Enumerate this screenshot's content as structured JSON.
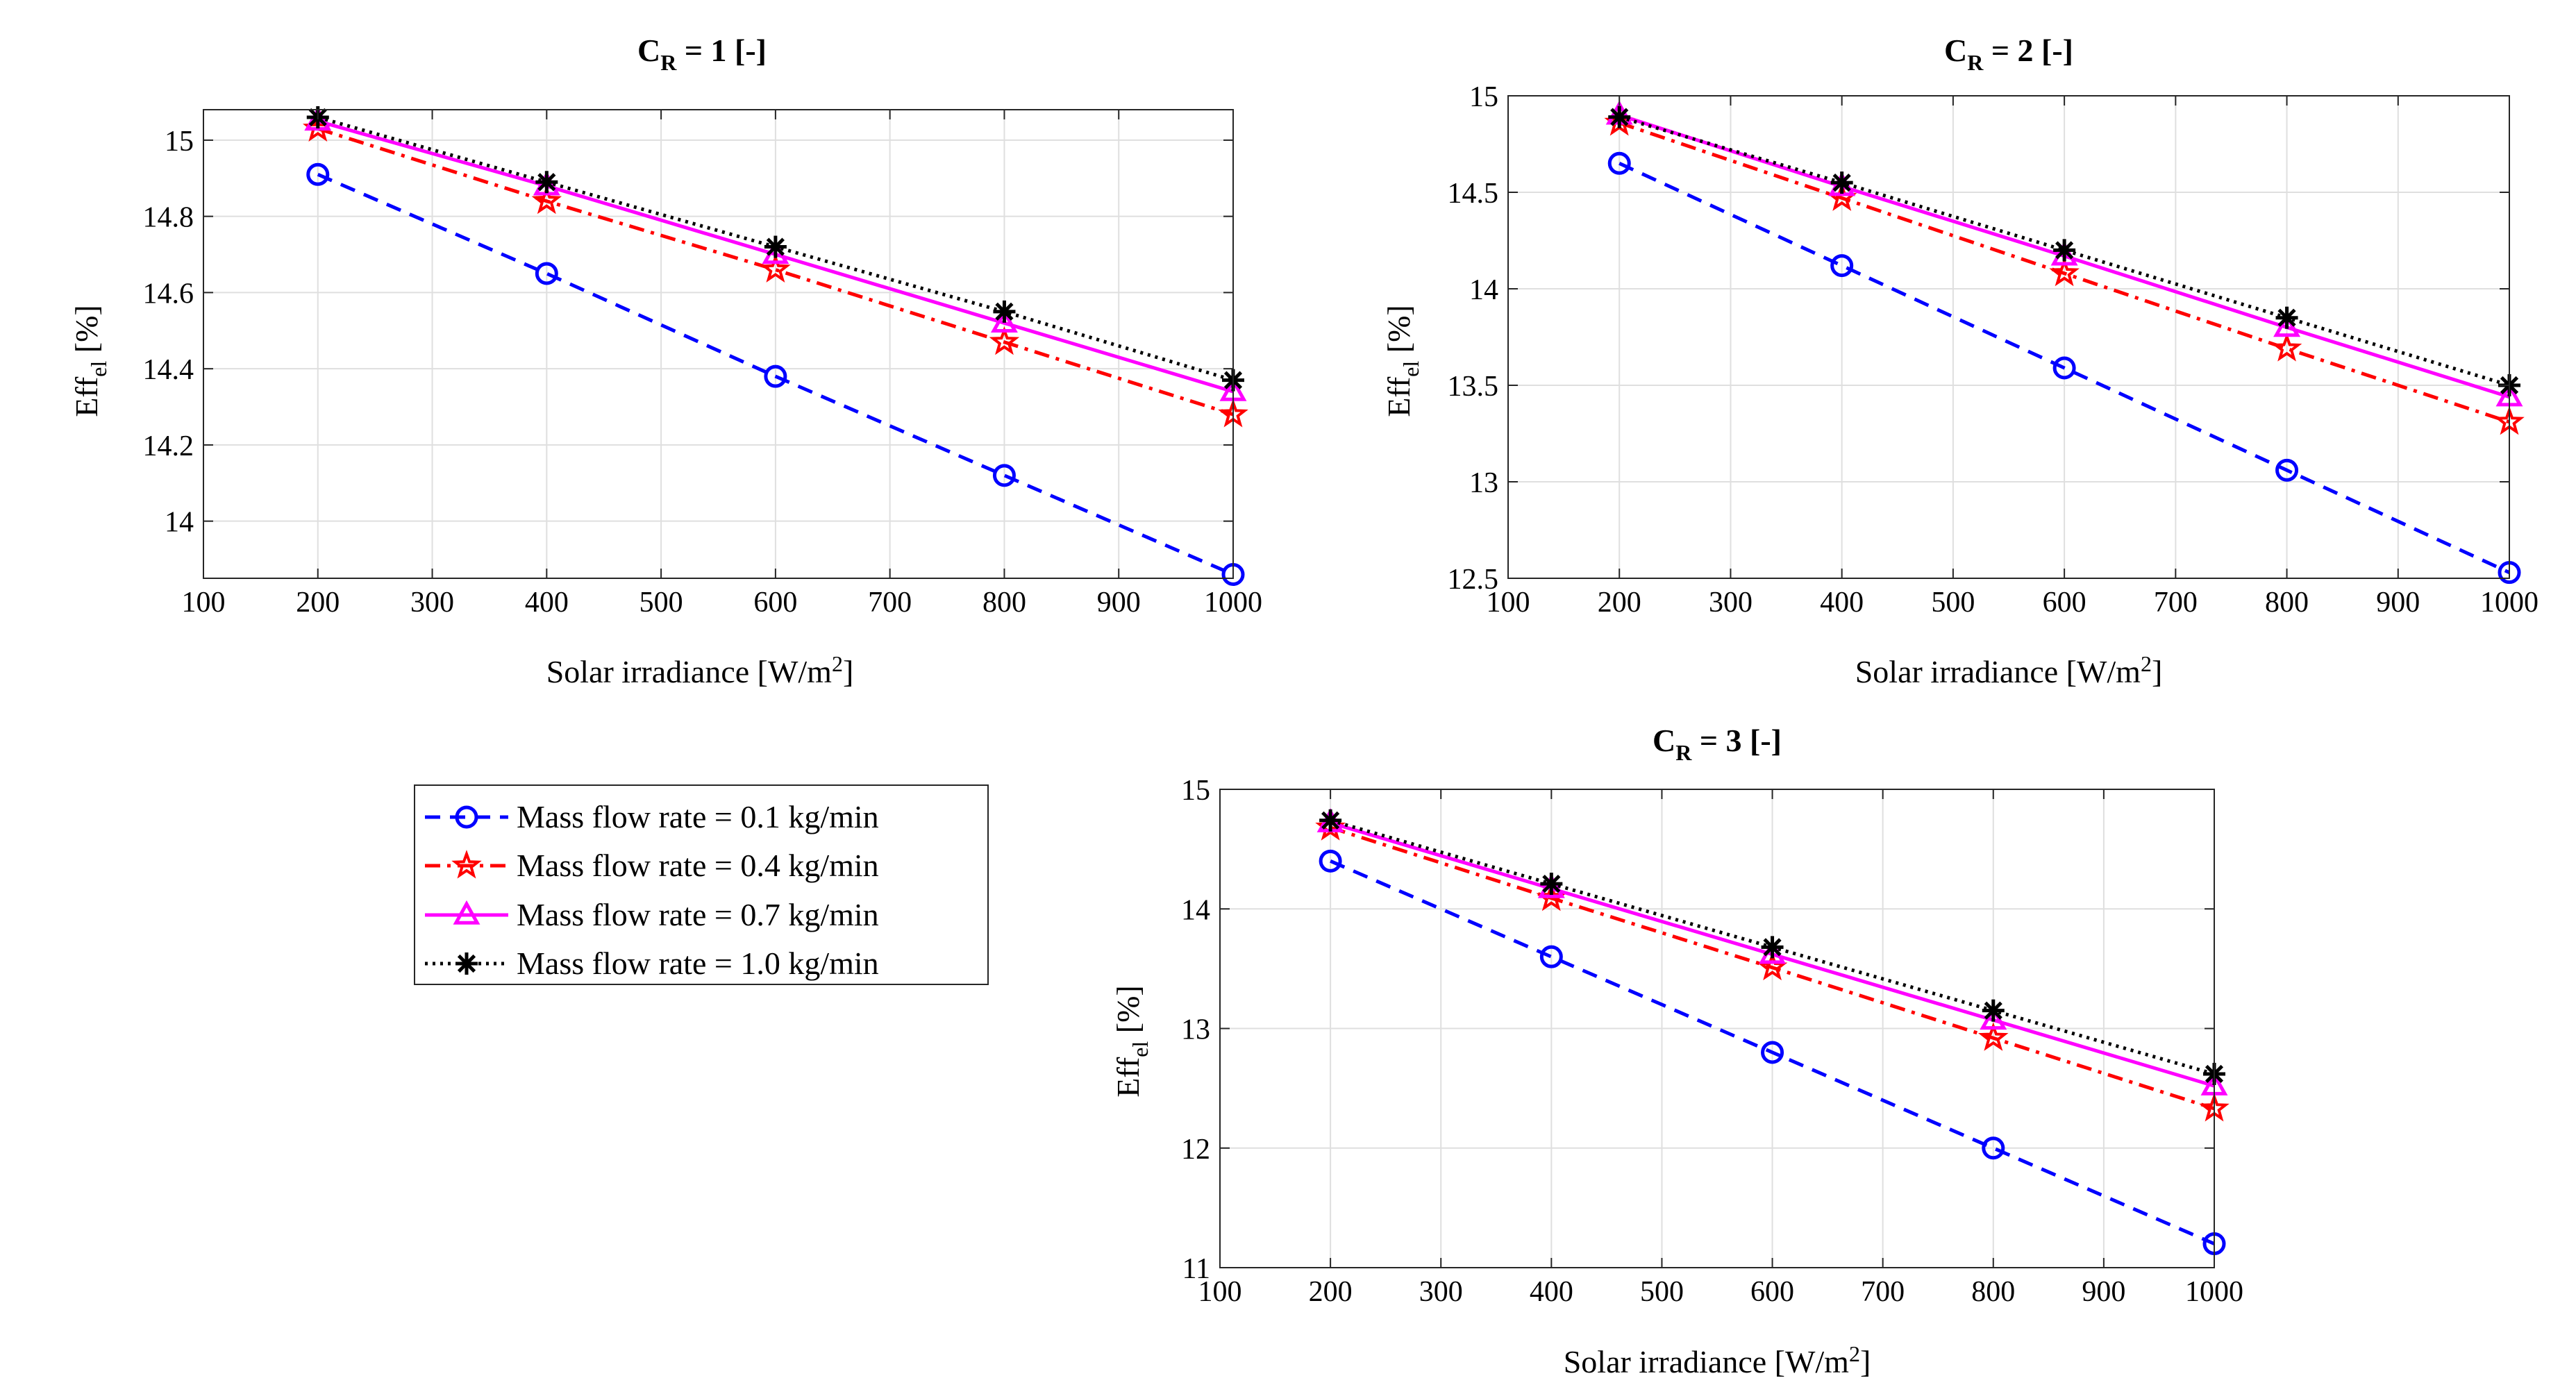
{
  "chart_data": [
    {
      "type": "line",
      "title_main": "C",
      "title_sub": "R",
      "title_rest": " = 1 [-]",
      "xlabel_main": "Solar irradiance [W/m",
      "xlabel_sup": "2",
      "xlabel_end": "]",
      "ylabel_main": "Eff",
      "ylabel_sub": "el",
      "ylabel_end": " [%]",
      "xlim": [
        100,
        1000
      ],
      "ylim": [
        13.85,
        15.08
      ],
      "xticks": [
        100,
        200,
        300,
        400,
        500,
        600,
        700,
        800,
        900,
        1000
      ],
      "yticks": [
        14,
        14.2,
        14.4,
        14.6,
        14.8,
        15
      ],
      "xtick_labels": [
        "100",
        "200",
        "300",
        "400",
        "500",
        "600",
        "700",
        "800",
        "900",
        "1000"
      ],
      "ytick_labels": [
        "14",
        "14.2",
        "14.4",
        "14.6",
        "14.8",
        "15"
      ],
      "grid": true,
      "x": [
        200,
        400,
        600,
        800,
        1000
      ],
      "series": [
        {
          "name": "Mass flow rate = 0.1 kg/min",
          "values": [
            14.91,
            14.65,
            14.38,
            14.12,
            13.86
          ]
        },
        {
          "name": "Mass flow rate = 0.4 kg/min",
          "values": [
            15.03,
            14.84,
            14.66,
            14.47,
            14.28
          ]
        },
        {
          "name": "Mass flow rate = 0.7 kg/min",
          "values": [
            15.05,
            14.88,
            14.7,
            14.52,
            14.34
          ]
        },
        {
          "name": "Mass flow rate = 1.0 kg/min",
          "values": [
            15.06,
            14.89,
            14.72,
            14.55,
            14.37
          ]
        }
      ]
    },
    {
      "type": "line",
      "title_main": "C",
      "title_sub": "R",
      "title_rest": " = 2 [-]",
      "xlabel_main": "Solar irradiance [W/m",
      "xlabel_sup": "2",
      "xlabel_end": "]",
      "ylabel_main": "Eff",
      "ylabel_sub": "el",
      "ylabel_end": " [%]",
      "xlim": [
        100,
        1000
      ],
      "ylim": [
        12.5,
        15
      ],
      "xticks": [
        100,
        200,
        300,
        400,
        500,
        600,
        700,
        800,
        900,
        1000
      ],
      "yticks": [
        12.5,
        13,
        13.5,
        14,
        14.5,
        15
      ],
      "xtick_labels": [
        "100",
        "200",
        "300",
        "400",
        "500",
        "600",
        "700",
        "800",
        "900",
        "1000"
      ],
      "ytick_labels": [
        "12.5",
        "13",
        "13.5",
        "14",
        "14.5",
        "15"
      ],
      "grid": true,
      "x": [
        200,
        400,
        600,
        800,
        1000
      ],
      "series": [
        {
          "name": "Mass flow rate = 0.1 kg/min",
          "values": [
            14.65,
            14.12,
            13.59,
            13.06,
            12.53
          ]
        },
        {
          "name": "Mass flow rate = 0.4 kg/min",
          "values": [
            14.86,
            14.47,
            14.08,
            13.69,
            13.31
          ]
        },
        {
          "name": "Mass flow rate = 0.7 kg/min",
          "values": [
            14.9,
            14.53,
            14.17,
            13.8,
            13.44
          ]
        },
        {
          "name": "Mass flow rate = 1.0 kg/min",
          "values": [
            14.89,
            14.55,
            14.2,
            13.85,
            13.5
          ]
        }
      ]
    },
    {
      "type": "line",
      "title_main": "C",
      "title_sub": "R",
      "title_rest": " = 3 [-]",
      "xlabel_main": "Solar irradiance [W/m",
      "xlabel_sup": "2",
      "xlabel_end": "]",
      "ylabel_main": "Eff",
      "ylabel_sub": "el",
      "ylabel_end": " [%]",
      "xlim": [
        100,
        1000
      ],
      "ylim": [
        11,
        15
      ],
      "xticks": [
        100,
        200,
        300,
        400,
        500,
        600,
        700,
        800,
        900,
        1000
      ],
      "yticks": [
        11,
        12,
        13,
        14,
        15
      ],
      "xtick_labels": [
        "100",
        "200",
        "300",
        "400",
        "500",
        "600",
        "700",
        "800",
        "900",
        "1000"
      ],
      "ytick_labels": [
        "11",
        "12",
        "13",
        "14",
        "15"
      ],
      "grid": true,
      "x": [
        200,
        400,
        600,
        800,
        1000
      ],
      "series": [
        {
          "name": "Mass flow rate = 0.1 kg/min",
          "values": [
            14.4,
            13.6,
            12.8,
            12.0,
            11.2
          ]
        },
        {
          "name": "Mass flow rate = 0.4 kg/min",
          "values": [
            14.68,
            14.09,
            13.51,
            12.92,
            12.33
          ]
        },
        {
          "name": "Mass flow rate = 0.7 kg/min",
          "values": [
            14.72,
            14.17,
            13.62,
            13.07,
            12.52
          ]
        },
        {
          "name": "Mass flow rate = 1.0 kg/min",
          "values": [
            14.74,
            14.21,
            13.68,
            13.15,
            12.62
          ]
        }
      ]
    }
  ],
  "legend": {
    "items": [
      "Mass flow rate = 0.1 kg/min",
      "Mass flow rate = 0.4 kg/min",
      "Mass flow rate = 0.7 kg/min",
      "Mass flow rate = 1.0 kg/min"
    ]
  },
  "series_styles": [
    {
      "color": "#0000ff",
      "marker": "circle",
      "dash": "dashed"
    },
    {
      "color": "#ff0000",
      "marker": "star",
      "dash": "dashdot"
    },
    {
      "color": "#ff00ff",
      "marker": "triangle",
      "dash": "solid"
    },
    {
      "color": "#000000",
      "marker": "asterisk",
      "dash": "dotted"
    }
  ]
}
